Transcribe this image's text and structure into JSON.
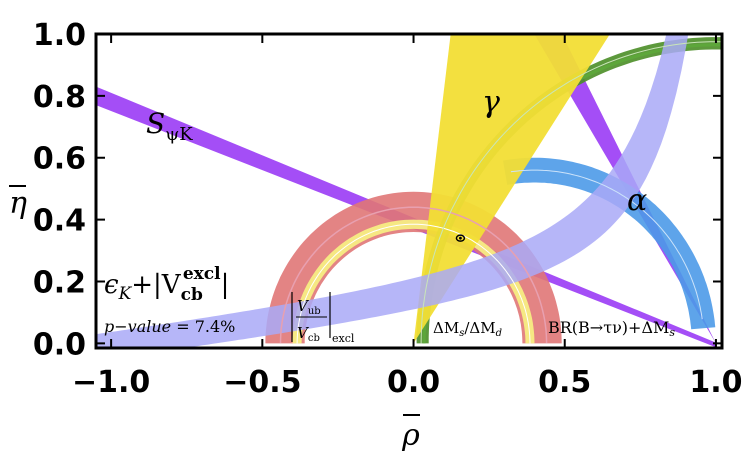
{
  "chart_data": {
    "type": "area",
    "xlabel": "ρ",
    "ylabel": "η",
    "xlim": [
      -1.05,
      1.02
    ],
    "ylim": [
      -0.015,
      1.0
    ],
    "xticks": [
      "−1.0",
      "−0.5",
      "0.0",
      "0.5",
      "1.0"
    ],
    "xtick_values": [
      -1.0,
      -0.5,
      0.0,
      0.5,
      1.0
    ],
    "yticks": [
      "0.0",
      "0.2",
      "0.4",
      "0.6",
      "0.8",
      "1.0"
    ],
    "ytick_values": [
      0.0,
      0.2,
      0.4,
      0.6,
      0.8,
      1.0
    ],
    "grid": false,
    "apex": {
      "rho": 0.155,
      "eta": 0.34
    },
    "series": [
      {
        "kind": "line-band",
        "p1": [
          -1.05,
          0.8
        ],
        "p2": [
          1.0,
          -0.005
        ],
        "half_width": 0.03,
        "color": "#9f45f5"
      },
      {
        "kind": "wedge",
        "origin": [
          1.0,
          0.0
        ],
        "angles": [
          117,
          121
        ],
        "color": "#9f45f5"
      },
      {
        "kind": "annulus",
        "center": [
          0.0,
          0.0
        ],
        "r_inner": 0.36,
        "r_outer": 0.49,
        "angles": [
          0,
          180
        ],
        "color": "#e07777"
      },
      {
        "kind": "annulus",
        "center": [
          0.0,
          0.0
        ],
        "r_inner": 0.37,
        "r_outer": 0.4,
        "angles": [
          0,
          180
        ],
        "color": "#f7f383"
      },
      {
        "kind": "annulus",
        "center": [
          1.0,
          0.0
        ],
        "r_inner": 0.95,
        "r_outer": 0.99,
        "angles": [
          70,
          180
        ],
        "color": "#4b8e27"
      },
      {
        "kind": "annulus",
        "center": [
          1.0,
          0.0
        ],
        "r_inner": 0.96,
        "r_outer": 0.97,
        "angles": [
          70,
          180
        ],
        "color": "#5da83a"
      },
      {
        "kind": "annulus",
        "center": [
          0.4,
          0.0
        ],
        "r_inner": 0.52,
        "r_outer": 0.6,
        "angles": [
          5,
          100
        ],
        "color": "#4d9ae8"
      },
      {
        "kind": "wedge",
        "origin": [
          0.0,
          0.0
        ],
        "angles": [
          57,
          83
        ],
        "color": "#f2de35"
      },
      {
        "kind": "hyperbola-band",
        "k_inner": 0.07,
        "k_outer": 0.1,
        "color": "#a9a9f7"
      }
    ],
    "labels": {
      "spsik_main": "S",
      "spsik_sub": "ψK",
      "gamma": "γ",
      "alpha": "α",
      "epsk": "ϵ",
      "epsk_sub": "K",
      "epsk_rest": "+|V",
      "epsk_vcb_sub": "cb",
      "epsk_sup": "excl",
      "epsk_end": "|",
      "vub_num": "V",
      "vub_num_sub": "ub",
      "vub_den": "V",
      "vub_den_sub": "cb",
      "vub_excl": "excl",
      "pvalue_italic": "p−value",
      "pvalue_rest": " =  7.4%",
      "dm_label_a": "ΔM",
      "dm_label_a_sub": "s",
      "dm_label_b": "/ΔM",
      "dm_label_b_sub": "d",
      "br_label": "BR(B→τν)+ΔM",
      "br_label_sub": "s"
    }
  }
}
